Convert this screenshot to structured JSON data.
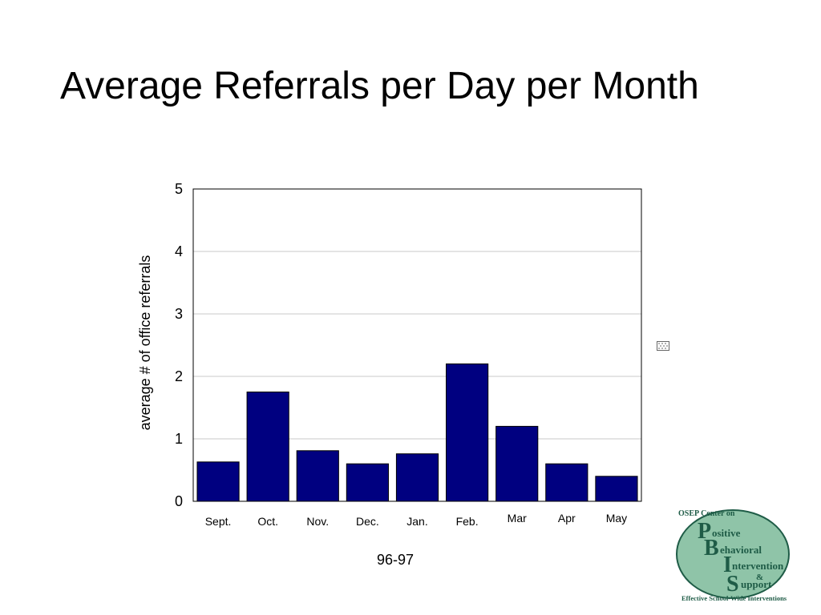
{
  "slide": {
    "title": "Average Referrals per Day per Month"
  },
  "chart_data": {
    "type": "bar",
    "categories": [
      "Sept.",
      "Oct.",
      "Nov.",
      "Dec.",
      "Jan.",
      "Feb.",
      "Mar",
      "Apr",
      "May"
    ],
    "values": [
      0.63,
      1.75,
      0.81,
      0.6,
      0.76,
      2.2,
      1.2,
      0.6,
      0.4
    ],
    "ylabel": "average # of office referrals",
    "xlabel": "96-97",
    "ylim": [
      0,
      5
    ],
    "yticks": [
      0,
      1,
      2,
      3,
      4,
      5
    ],
    "grid": true,
    "bar_color": "#000080"
  },
  "logo": {
    "top_line": "OSEP Center on",
    "letters": [
      "P",
      "B",
      "I",
      "S"
    ],
    "words": [
      "ositive",
      "ehavioral",
      "ntervention",
      "&",
      "upport"
    ],
    "tagline": "Effective School-Wide Interventions",
    "color": "#1f5c47",
    "fill": "#8fc4a8"
  }
}
